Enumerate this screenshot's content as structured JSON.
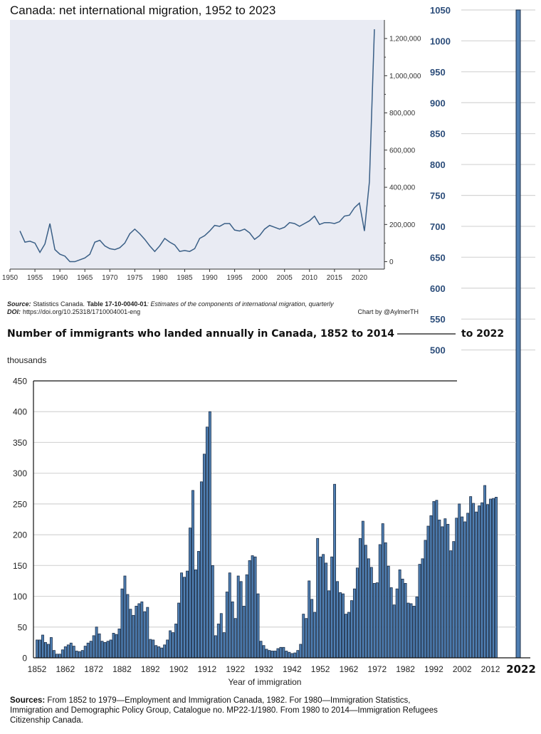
{
  "colors": {
    "plot_bg": "#e9ebf3",
    "line": "#3a5f86",
    "bar_fill": "#4f7fb3",
    "bar_stroke": "#1c2f49",
    "axis_blue": "#2c4d7a",
    "grid": "#d4d4d4"
  },
  "chart_data": [
    {
      "type": "line",
      "title": "Canada: net international migration, 1952 to 2023",
      "source_label": "Source:",
      "source_text": "Statistics Canada.",
      "source_table": "Table 17-10-0040-01",
      "source_desc": ": Estimates of the components of international migration, quarterly",
      "doi_label": "DOI:",
      "doi_text": "https://doi.org/10.25318/1710004001-eng",
      "credit": "Chart by @AylmerTH",
      "x_ticks": [
        "1950",
        "1955",
        "1960",
        "1965",
        "1970",
        "1975",
        "1980",
        "1985",
        "1990",
        "1995",
        "2000",
        "2005",
        "2010",
        "2015",
        "2020"
      ],
      "y_ticks": [
        "0",
        "200,000",
        "400,000",
        "600,000",
        "800,000",
        "1,000,000",
        "1,200,000"
      ],
      "xlim": [
        1950,
        2025
      ],
      "ylim": [
        -40000,
        1300000
      ],
      "x": [
        1952,
        1953,
        1954,
        1955,
        1956,
        1957,
        1958,
        1959,
        1960,
        1961,
        1962,
        1963,
        1964,
        1965,
        1966,
        1967,
        1968,
        1969,
        1970,
        1971,
        1972,
        1973,
        1974,
        1975,
        1976,
        1977,
        1978,
        1979,
        1980,
        1981,
        1982,
        1983,
        1984,
        1985,
        1986,
        1987,
        1988,
        1989,
        1990,
        1991,
        1992,
        1993,
        1994,
        1995,
        1996,
        1997,
        1998,
        1999,
        2000,
        2001,
        2002,
        2003,
        2004,
        2005,
        2006,
        2007,
        2008,
        2009,
        2010,
        2011,
        2012,
        2013,
        2014,
        2015,
        2016,
        2017,
        2018,
        2019,
        2020,
        2021,
        2022,
        2023
      ],
      "y": [
        165000,
        105000,
        110000,
        100000,
        50000,
        95000,
        205000,
        65000,
        40000,
        30000,
        0,
        0,
        10000,
        20000,
        40000,
        105000,
        115000,
        85000,
        70000,
        65000,
        75000,
        100000,
        150000,
        175000,
        150000,
        120000,
        85000,
        55000,
        85000,
        125000,
        105000,
        90000,
        55000,
        60000,
        55000,
        70000,
        125000,
        140000,
        165000,
        195000,
        190000,
        205000,
        205000,
        170000,
        165000,
        175000,
        155000,
        120000,
        140000,
        175000,
        195000,
        185000,
        175000,
        185000,
        210000,
        205000,
        190000,
        205000,
        220000,
        245000,
        200000,
        210000,
        210000,
        205000,
        215000,
        245000,
        250000,
        290000,
        315000,
        165000,
        430000,
        1250000
      ]
    },
    {
      "type": "bar",
      "title": "Number of immigrants who landed annually in Canada, 1852 to 2014",
      "title_suffix": "to 2022",
      "unit_label": "thousands",
      "xlabel": "Year of immigration",
      "x_ticks": [
        "1852",
        "1862",
        "1872",
        "1882",
        "1892",
        "1902",
        "1912",
        "1922",
        "1932",
        "1942",
        "1952",
        "1962",
        "1972",
        "1982",
        "1992",
        "2002",
        "2012"
      ],
      "y_ticks": [
        "0",
        "50",
        "100",
        "150",
        "200",
        "250",
        "300",
        "350",
        "400",
        "450"
      ],
      "ylim": [
        0,
        450
      ],
      "years": [
        1852,
        1853,
        1854,
        1855,
        1856,
        1857,
        1858,
        1859,
        1860,
        1861,
        1862,
        1863,
        1864,
        1865,
        1866,
        1867,
        1868,
        1869,
        1870,
        1871,
        1872,
        1873,
        1874,
        1875,
        1876,
        1877,
        1878,
        1879,
        1880,
        1881,
        1882,
        1883,
        1884,
        1885,
        1886,
        1887,
        1888,
        1889,
        1890,
        1891,
        1892,
        1893,
        1894,
        1895,
        1896,
        1897,
        1898,
        1899,
        1900,
        1901,
        1902,
        1903,
        1904,
        1905,
        1906,
        1907,
        1908,
        1909,
        1910,
        1911,
        1912,
        1913,
        1914,
        1915,
        1916,
        1917,
        1918,
        1919,
        1920,
        1921,
        1922,
        1923,
        1924,
        1925,
        1926,
        1927,
        1928,
        1929,
        1930,
        1931,
        1932,
        1933,
        1934,
        1935,
        1936,
        1937,
        1938,
        1939,
        1940,
        1941,
        1942,
        1943,
        1944,
        1945,
        1946,
        1947,
        1948,
        1949,
        1950,
        1951,
        1952,
        1953,
        1954,
        1955,
        1956,
        1957,
        1958,
        1959,
        1960,
        1961,
        1962,
        1963,
        1964,
        1965,
        1966,
        1967,
        1968,
        1969,
        1970,
        1971,
        1972,
        1973,
        1974,
        1975,
        1976,
        1977,
        1978,
        1979,
        1980,
        1981,
        1982,
        1983,
        1984,
        1985,
        1986,
        1987,
        1988,
        1989,
        1990,
        1991,
        1992,
        1993,
        1994,
        1995,
        1996,
        1997,
        1998,
        1999,
        2000,
        2001,
        2002,
        2003,
        2004,
        2005,
        2006,
        2007,
        2008,
        2009,
        2010,
        2011,
        2012,
        2013,
        2014
      ],
      "values": [
        29,
        29,
        37,
        25,
        22,
        33,
        12,
        6,
        6,
        13,
        18,
        21,
        24,
        19,
        11,
        10,
        12,
        19,
        24,
        27,
        36,
        50,
        39,
        27,
        25,
        27,
        29,
        40,
        38,
        47,
        112,
        133,
        103,
        79,
        69,
        84,
        88,
        91,
        75,
        82,
        30,
        29,
        20,
        18,
        16,
        21,
        29,
        44,
        41,
        55,
        89,
        138,
        131,
        141,
        211,
        272,
        143,
        173,
        286,
        331,
        375,
        400,
        150,
        36,
        55,
        72,
        41,
        107,
        138,
        91,
        64,
        133,
        124,
        84,
        135,
        158,
        166,
        164,
        104,
        27,
        20,
        14,
        12,
        11,
        11,
        15,
        17,
        17,
        11,
        9,
        7,
        8,
        12,
        22,
        71,
        64,
        125,
        95,
        74,
        194,
        164,
        168,
        154,
        109,
        164,
        282,
        124,
        106,
        104,
        71,
        74,
        93,
        112,
        146,
        194,
        222,
        183,
        161,
        147,
        121,
        122,
        184,
        218,
        187,
        149,
        114,
        86,
        112,
        143,
        128,
        121,
        89,
        88,
        84,
        99,
        152,
        161,
        191,
        214,
        231,
        254,
        256,
        224,
        213,
        226,
        217,
        174,
        189,
        227,
        250,
        229,
        221,
        235,
        262,
        251,
        237,
        247,
        252,
        280,
        249,
        258,
        259,
        261
      ]
    },
    {
      "type": "bar",
      "axis_range": [
        450,
        1050
      ],
      "y_ticks": [
        "500",
        "550",
        "600",
        "650",
        "700",
        "750",
        "800",
        "850",
        "900",
        "950",
        "1000",
        "1050"
      ],
      "categories": [
        "2022"
      ],
      "values": [
        1050
      ]
    }
  ],
  "sources": {
    "label": "Sources:",
    "line1": " From 1852 to 1979—Employment and Immigration Canada, 1982. For 1980—Immigration Statistics,",
    "line2": "Immigration and Demographic Policy Group, Catalogue no. MP22-1/1980. From 1980 to 2014—Immigration Refugees",
    "line3": "Citizenship Canada."
  }
}
